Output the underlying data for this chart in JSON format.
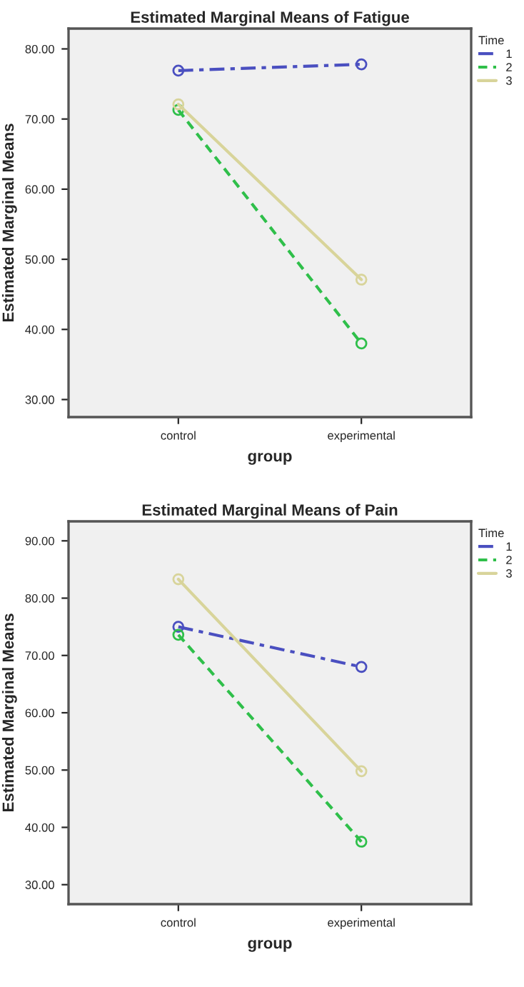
{
  "chart_data": [
    {
      "type": "line",
      "title": "Estimated Marginal Means of Fatigue",
      "xlabel": "group",
      "ylabel": "Estimated Marginal Means",
      "legend_title": "Time",
      "legend": "right",
      "grid": false,
      "marker": "circle",
      "categories": [
        "control",
        "experimental"
      ],
      "ylim": [
        27.5,
        82.9
      ],
      "yticks": [
        {
          "value": 30,
          "label": "30.00"
        },
        {
          "value": 40,
          "label": "40.00"
        },
        {
          "value": 50,
          "label": "50.00"
        },
        {
          "value": 60,
          "label": "60.00"
        },
        {
          "value": 70,
          "label": "70.00"
        },
        {
          "value": 80,
          "label": "80.00"
        }
      ],
      "series": [
        {
          "name": "1",
          "color": "#4a4fc0",
          "line_style": "dashed",
          "values": [
            76.9,
            77.8
          ]
        },
        {
          "name": "2",
          "color": "#2fbf4a",
          "line_style": "dotted",
          "values": [
            71.3,
            38.0
          ]
        },
        {
          "name": "3",
          "color": "#d8d49a",
          "line_style": "solid",
          "values": [
            72.1,
            47.1
          ]
        }
      ]
    },
    {
      "type": "line",
      "title": "Estimated Marginal Means of Pain",
      "xlabel": "group",
      "ylabel": "Estimated Marginal Means",
      "legend_title": "Time",
      "legend": "right",
      "grid": false,
      "marker": "circle",
      "categories": [
        "control",
        "experimental"
      ],
      "ylim": [
        26.6,
        93.4
      ],
      "yticks": [
        {
          "value": 30,
          "label": "30.00"
        },
        {
          "value": 40,
          "label": "40.00"
        },
        {
          "value": 50,
          "label": "50.00"
        },
        {
          "value": 60,
          "label": "60.00"
        },
        {
          "value": 70,
          "label": "70.00"
        },
        {
          "value": 80,
          "label": "80.00"
        },
        {
          "value": 90,
          "label": "90.00"
        }
      ],
      "series": [
        {
          "name": "1",
          "color": "#4a4fc0",
          "line_style": "dashed",
          "values": [
            75.0,
            68.0
          ]
        },
        {
          "name": "2",
          "color": "#2fbf4a",
          "line_style": "dotted",
          "values": [
            73.6,
            37.5
          ]
        },
        {
          "name": "3",
          "color": "#d8d49a",
          "line_style": "solid",
          "values": [
            83.3,
            49.8
          ]
        }
      ]
    }
  ]
}
